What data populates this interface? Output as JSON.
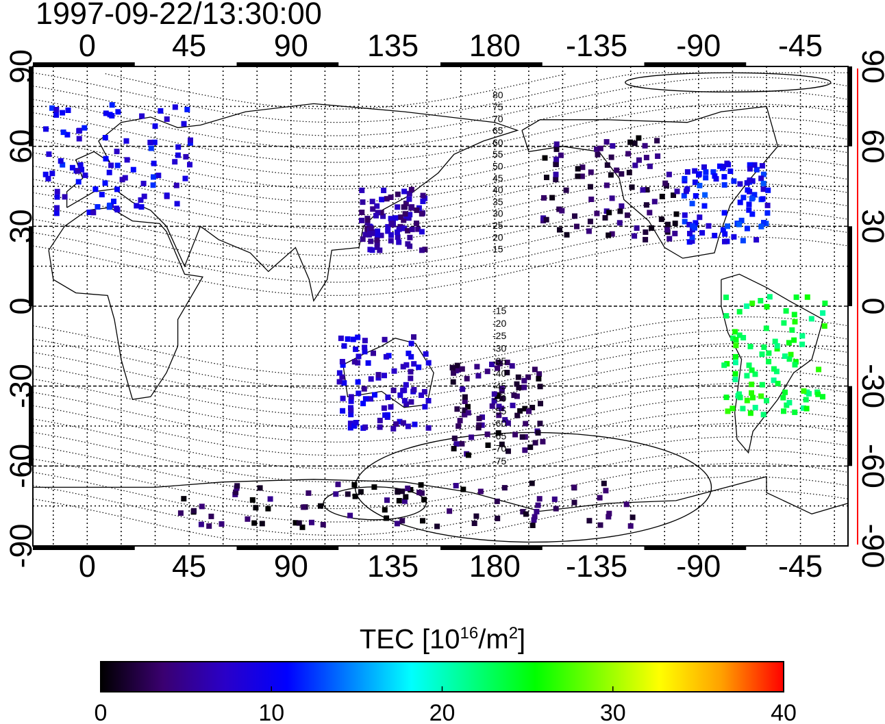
{
  "header": {
    "timestamp": "1997-09-22/13:30:00"
  },
  "axes": {
    "top_ticks": [
      "0",
      "45",
      "90",
      "135",
      "180",
      "-135",
      "-90",
      "-45"
    ],
    "bottom_ticks": [
      "0",
      "45",
      "90",
      "135",
      "180",
      "-135",
      "-90",
      "-45"
    ],
    "left_ticks": [
      "90",
      "60",
      "30",
      "0",
      "-30",
      "-60",
      "-90"
    ],
    "right_ticks": [
      "90",
      "60",
      "30",
      "0",
      "-30",
      "-60",
      "-90"
    ],
    "lon_range": [
      -24,
      336
    ],
    "lat_range": [
      -90,
      90
    ]
  },
  "contour_labels": {
    "north": [
      "80",
      "75",
      "70",
      "65",
      "60",
      "55",
      "50",
      "45",
      "40",
      "35",
      "30",
      "25",
      "20",
      "15"
    ],
    "south": [
      "-15",
      "-20",
      "-25",
      "-30",
      "-35",
      "-40",
      "-45",
      "-50",
      "-55",
      "-60",
      "-65",
      "-70",
      "-75"
    ]
  },
  "colorbar": {
    "title_prefix": "TEC  [10",
    "title_exp1": "16",
    "title_mid": "/m",
    "title_exp2": "2",
    "title_suffix": "]",
    "tick_labels": [
      "0",
      "10",
      "20",
      "30",
      "40"
    ],
    "range": [
      0,
      40
    ],
    "colors": [
      "#000000",
      "#3a0070",
      "#2a00c8",
      "#0000ff",
      "#0080ff",
      "#00ffff",
      "#00ff80",
      "#00ff00",
      "#80ff00",
      "#ffff00",
      "#ffa000",
      "#ff0000"
    ]
  },
  "tec_regions": [
    {
      "name": "europe",
      "lon": [
        -20,
        45
      ],
      "lat": [
        35,
        78
      ],
      "tec": 9.5
    },
    {
      "name": "east-asia",
      "lon": [
        120,
        148
      ],
      "lat": [
        22,
        45
      ],
      "tec": 6
    },
    {
      "name": "north-america-west",
      "lon": [
        200,
        260
      ],
      "lat": [
        25,
        65
      ],
      "tec": 3
    },
    {
      "name": "north-america-east",
      "lon": [
        262,
        300
      ],
      "lat": [
        25,
        55
      ],
      "tec": 10.5
    },
    {
      "name": "south-america",
      "lon": [
        280,
        325
      ],
      "lat": [
        -40,
        5
      ],
      "tec": 24
    },
    {
      "name": "antarctic-coast",
      "lon": [
        40,
        240
      ],
      "lat": [
        -82,
        -65
      ],
      "tec": 2
    },
    {
      "name": "australia",
      "lon": [
        110,
        150
      ],
      "lat": [
        -45,
        -10
      ],
      "tec": 8
    },
    {
      "name": "mid-pacific",
      "lon": [
        160,
        200
      ],
      "lat": [
        -55,
        -20
      ],
      "tec": 3
    }
  ]
}
